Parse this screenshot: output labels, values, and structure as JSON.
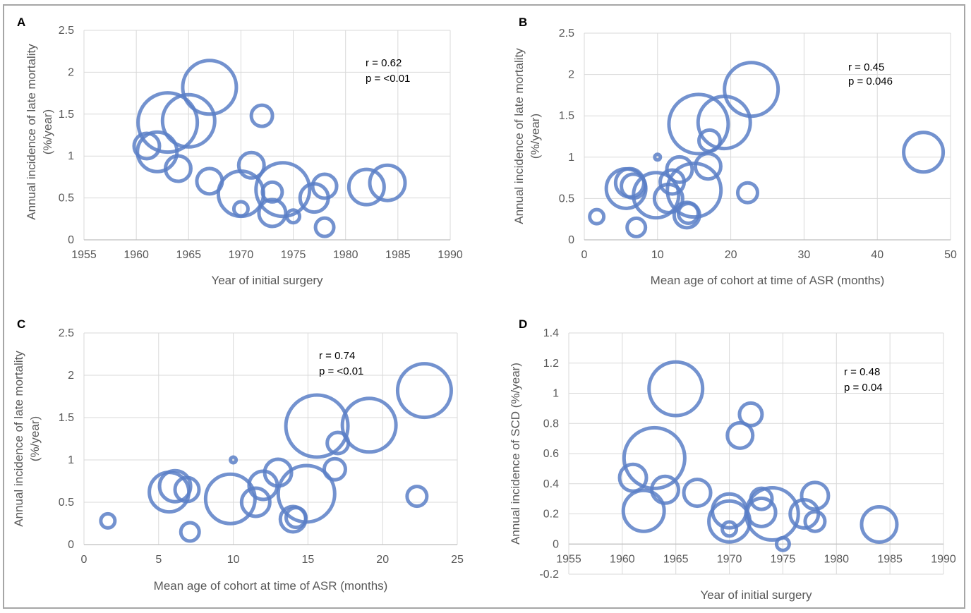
{
  "colors": {
    "bubble": "#5b7fc7",
    "grid": "#d9d9d9",
    "text": "#595959"
  },
  "chart_data": [
    {
      "type": "scatter",
      "panel_label": "A",
      "xlabel": "Year of initial surgery",
      "ylabel_lines": [
        "Annual incidence of late mortality",
        "(%/year)"
      ],
      "xlim": [
        1955,
        1990
      ],
      "ylim": [
        0,
        2.5
      ],
      "xticks": [
        1955,
        1960,
        1965,
        1970,
        1975,
        1980,
        1985,
        1990
      ],
      "yticks": [
        0,
        0.5,
        1,
        1.5,
        2,
        2.5
      ],
      "ytick_labels": [
        "0",
        "0.5",
        "1",
        "1.5",
        "2",
        "2.5"
      ],
      "annotation": [
        "r = 0.62",
        "p = <0.01"
      ],
      "points": [
        {
          "x": 1961,
          "y": 1.12,
          "size": 18
        },
        {
          "x": 1962,
          "y": 1.05,
          "size": 28
        },
        {
          "x": 1963,
          "y": 1.4,
          "size": 42
        },
        {
          "x": 1965,
          "y": 1.42,
          "size": 37
        },
        {
          "x": 1964,
          "y": 0.85,
          "size": 18
        },
        {
          "x": 1967,
          "y": 1.82,
          "size": 38
        },
        {
          "x": 1967,
          "y": 0.7,
          "size": 18
        },
        {
          "x": 1970,
          "y": 0.55,
          "size": 32
        },
        {
          "x": 1970,
          "y": 0.37,
          "size": 10
        },
        {
          "x": 1971,
          "y": 0.89,
          "size": 18
        },
        {
          "x": 1972,
          "y": 1.48,
          "size": 15
        },
        {
          "x": 1973,
          "y": 0.57,
          "size": 14
        },
        {
          "x": 1973,
          "y": 0.32,
          "size": 19
        },
        {
          "x": 1974,
          "y": 0.6,
          "size": 38
        },
        {
          "x": 1975,
          "y": 0.28,
          "size": 9
        },
        {
          "x": 1977,
          "y": 0.5,
          "size": 20
        },
        {
          "x": 1978,
          "y": 0.64,
          "size": 17
        },
        {
          "x": 1978,
          "y": 0.15,
          "size": 13
        },
        {
          "x": 1982,
          "y": 0.63,
          "size": 25
        },
        {
          "x": 1984,
          "y": 0.68,
          "size": 25
        }
      ]
    },
    {
      "type": "scatter",
      "panel_label": "B",
      "xlabel": "Mean age of cohort at time of ASR (months)",
      "ylabel_lines": [
        "Annual incidence of late mortality",
        "(%/year)"
      ],
      "xlim": [
        0,
        50
      ],
      "ylim": [
        0,
        2.5
      ],
      "xticks": [
        0,
        10,
        20,
        30,
        40,
        50
      ],
      "yticks": [
        0,
        0.5,
        1,
        1.5,
        2,
        2.5
      ],
      "ytick_labels": [
        "0",
        "0.5",
        "1",
        "1.5",
        "2",
        "2.5"
      ],
      "annotation": [
        "r = 0.45",
        "p = 0.046"
      ],
      "points": [
        {
          "x": 1.7,
          "y": 0.28,
          "size": 10
        },
        {
          "x": 5.7,
          "y": 0.62,
          "size": 28
        },
        {
          "x": 6.2,
          "y": 0.69,
          "size": 20
        },
        {
          "x": 6.7,
          "y": 0.65,
          "size": 17
        },
        {
          "x": 7.1,
          "y": 0.15,
          "size": 13
        },
        {
          "x": 9.8,
          "y": 0.54,
          "size": 32
        },
        {
          "x": 10,
          "y": 1.0,
          "size": 4
        },
        {
          "x": 11.5,
          "y": 0.5,
          "size": 20
        },
        {
          "x": 12,
          "y": 0.7,
          "size": 17
        },
        {
          "x": 13,
          "y": 0.85,
          "size": 18
        },
        {
          "x": 14,
          "y": 0.3,
          "size": 18
        },
        {
          "x": 14.2,
          "y": 0.32,
          "size": 14
        },
        {
          "x": 15,
          "y": 0.6,
          "size": 38
        },
        {
          "x": 15.6,
          "y": 1.4,
          "size": 42
        },
        {
          "x": 16.9,
          "y": 0.89,
          "size": 18
        },
        {
          "x": 17.1,
          "y": 1.2,
          "size": 15
        },
        {
          "x": 19.1,
          "y": 1.42,
          "size": 37
        },
        {
          "x": 22.3,
          "y": 0.57,
          "size": 14
        },
        {
          "x": 22.8,
          "y": 1.82,
          "size": 38
        },
        {
          "x": 46.3,
          "y": 1.06,
          "size": 28
        }
      ]
    },
    {
      "type": "scatter",
      "panel_label": "C",
      "xlabel": "Mean age of cohort at time of ASR (months)",
      "ylabel_lines": [
        "Annual incidence of late mortality",
        "(%/year)"
      ],
      "xlim": [
        0,
        25
      ],
      "ylim": [
        0,
        2.5
      ],
      "xticks": [
        0,
        5,
        10,
        15,
        20,
        25
      ],
      "yticks": [
        0,
        0.5,
        1,
        1.5,
        2,
        2.5
      ],
      "ytick_labels": [
        "0",
        "0.5",
        "1",
        "1.5",
        "2",
        "2.5"
      ],
      "annotation": [
        "r = 0.74",
        "p = <0.01"
      ],
      "points": [
        {
          "x": 1.6,
          "y": 0.28,
          "size": 10
        },
        {
          "x": 5.7,
          "y": 0.62,
          "size": 28
        },
        {
          "x": 6.1,
          "y": 0.69,
          "size": 22
        },
        {
          "x": 6.9,
          "y": 0.65,
          "size": 17
        },
        {
          "x": 7.1,
          "y": 0.15,
          "size": 13
        },
        {
          "x": 9.8,
          "y": 0.54,
          "size": 35
        },
        {
          "x": 10,
          "y": 1.0,
          "size": 4
        },
        {
          "x": 11.5,
          "y": 0.5,
          "size": 20
        },
        {
          "x": 12,
          "y": 0.7,
          "size": 20
        },
        {
          "x": 13,
          "y": 0.85,
          "size": 19
        },
        {
          "x": 14,
          "y": 0.3,
          "size": 18
        },
        {
          "x": 14.2,
          "y": 0.32,
          "size": 14
        },
        {
          "x": 14.9,
          "y": 0.6,
          "size": 40
        },
        {
          "x": 15.6,
          "y": 1.4,
          "size": 44
        },
        {
          "x": 16.8,
          "y": 0.89,
          "size": 15
        },
        {
          "x": 17,
          "y": 1.2,
          "size": 15
        },
        {
          "x": 19.1,
          "y": 1.41,
          "size": 38
        },
        {
          "x": 22.3,
          "y": 0.57,
          "size": 14
        },
        {
          "x": 22.8,
          "y": 1.82,
          "size": 38
        }
      ]
    },
    {
      "type": "scatter",
      "panel_label": "D",
      "xlabel": "Year of initial surgery",
      "ylabel_lines": [
        "Annual incidence of SCD (%/year)"
      ],
      "xlim": [
        1955,
        1990
      ],
      "ylim": [
        -0.2,
        1.4
      ],
      "xticks": [
        1955,
        1960,
        1965,
        1970,
        1975,
        1980,
        1985,
        1990
      ],
      "yticks": [
        -0.2,
        0,
        0.2,
        0.4,
        0.6,
        0.8,
        1,
        1.2,
        1.4
      ],
      "ytick_labels": [
        "-0.2",
        "0",
        "0.2",
        "0.4",
        "0.6",
        "0.8",
        "1",
        "1.2",
        "1.4"
      ],
      "annotation": [
        "r = 0.48",
        "p = 0.04"
      ],
      "points": [
        {
          "x": 1961,
          "y": 0.44,
          "size": 19
        },
        {
          "x": 1962,
          "y": 0.22,
          "size": 29
        },
        {
          "x": 1963,
          "y": 0.57,
          "size": 43
        },
        {
          "x": 1964,
          "y": 0.36,
          "size": 19
        },
        {
          "x": 1965,
          "y": 1.03,
          "size": 38
        },
        {
          "x": 1967,
          "y": 0.34,
          "size": 19
        },
        {
          "x": 1970,
          "y": 0.22,
          "size": 24
        },
        {
          "x": 1970,
          "y": 0.15,
          "size": 29
        },
        {
          "x": 1970,
          "y": 0.1,
          "size": 10
        },
        {
          "x": 1971,
          "y": 0.72,
          "size": 18
        },
        {
          "x": 1972,
          "y": 0.86,
          "size": 16
        },
        {
          "x": 1973,
          "y": 0.3,
          "size": 15
        },
        {
          "x": 1973,
          "y": 0.21,
          "size": 20
        },
        {
          "x": 1974,
          "y": 0.2,
          "size": 37
        },
        {
          "x": 1975,
          "y": 0.0,
          "size": 9
        },
        {
          "x": 1977,
          "y": 0.2,
          "size": 20
        },
        {
          "x": 1978,
          "y": 0.32,
          "size": 19
        },
        {
          "x": 1978,
          "y": 0.15,
          "size": 14
        },
        {
          "x": 1984,
          "y": 0.13,
          "size": 25
        }
      ]
    }
  ]
}
